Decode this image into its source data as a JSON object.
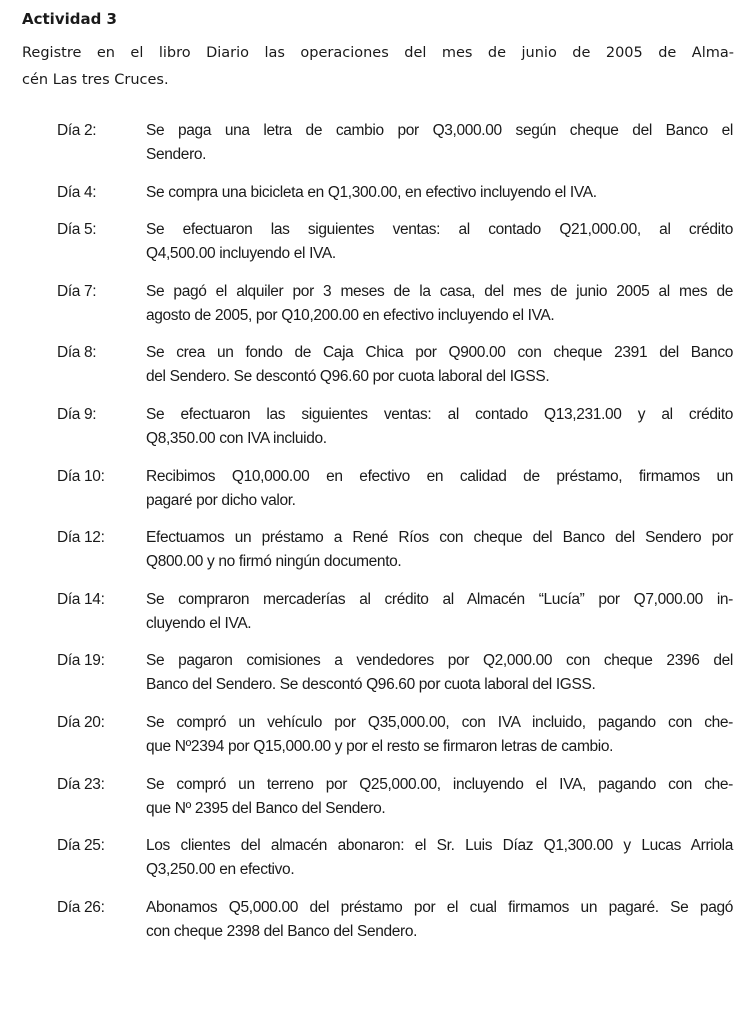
{
  "title": "Actividad 3",
  "intro": [
    "Registre en el libro Diario las operaciones del mes de junio de 2005 de Alma-",
    "cén Las tres Cruces."
  ],
  "entries": [
    {
      "day": "Día 2:",
      "lines": [
        "Se paga una letra de cambio por Q3,000.00 según cheque del Banco el",
        "Sendero."
      ]
    },
    {
      "day": "Día 4:",
      "lines": [
        "Se compra una bicicleta en Q1,300.00, en efectivo incluyendo el IVA."
      ]
    },
    {
      "day": "Día 5:",
      "lines": [
        "Se efectuaron las siguientes ventas: al contado Q21,000.00, al crédito",
        "Q4,500.00 incluyendo el IVA."
      ]
    },
    {
      "day": "Día 7:",
      "lines": [
        "Se pagó el alquiler por 3 meses de la casa, del mes de junio 2005 al mes de",
        "agosto de 2005, por Q10,200.00 en efectivo incluyendo el IVA."
      ]
    },
    {
      "day": "Día 8:",
      "lines": [
        "Se crea un fondo de Caja Chica por Q900.00 con cheque 2391 del Banco",
        "del Sendero. Se descontó Q96.60 por cuota laboral del IGSS."
      ]
    },
    {
      "day": "Día 9:",
      "lines": [
        "Se efectuaron las siguientes ventas: al contado Q13,231.00 y al crédito",
        "Q8,350.00 con IVA incluido."
      ]
    },
    {
      "day": "Día 10:",
      "lines": [
        "Recibimos Q10,000.00 en efectivo en calidad de préstamo, firmamos un",
        "pagaré por dicho valor."
      ]
    },
    {
      "day": "Día 12:",
      "lines": [
        "Efectuamos un préstamo a René Ríos con cheque del Banco del Sendero por",
        "Q800.00 y no firmó ningún documento."
      ]
    },
    {
      "day": "Día 14:",
      "lines": [
        "Se compraron mercaderías al crédito al Almacén “Lucía” por Q7,000.00 in-",
        "cluyendo el IVA."
      ]
    },
    {
      "day": "Día 19:",
      "lines": [
        "Se pagaron comisiones a vendedores por Q2,000.00 con cheque 2396 del",
        "Banco del Sendero. Se descontó Q96.60 por cuota laboral del IGSS."
      ]
    },
    {
      "day": "Día 20:",
      "lines": [
        "Se compró un vehículo por Q35,000.00, con IVA incluido, pagando con che-",
        "que Nº2394 por Q15,000.00 y por el resto se firmaron letras de cambio."
      ]
    },
    {
      "day": "Día 23:",
      "lines": [
        "Se compró un terreno por Q25,000.00, incluyendo el IVA, pagando con che-",
        "que Nº 2395 del Banco del Sendero."
      ]
    },
    {
      "day": "Día 25:",
      "lines": [
        "Los clientes del almacén abonaron: el Sr. Luis Díaz Q1,300.00 y Lucas Arriola",
        "Q3,250.00 en efectivo."
      ]
    },
    {
      "day": "Día 26:",
      "lines": [
        "Abonamos Q5,000.00 del préstamo por el cual firmamos un pagaré. Se pagó",
        "con cheque 2398 del Banco del Sendero."
      ]
    }
  ]
}
